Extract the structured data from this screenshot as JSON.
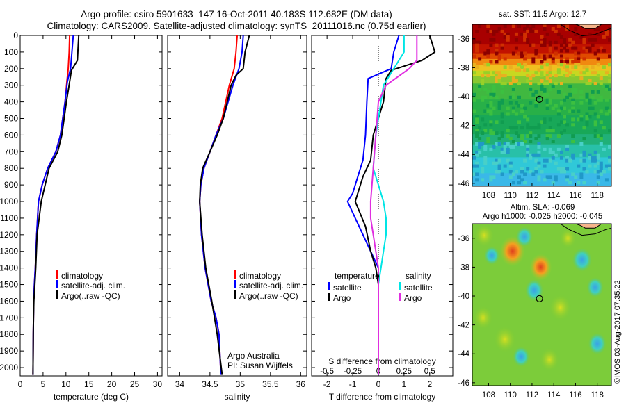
{
  "header": {
    "title_line1": "Argo profile: csiro 5901633_147 16-Oct-2011 40.183S 112.682E (DM data)",
    "title_line2": "Climatology: CARS2009. Satellite-adjusted climatology: synTS_20111016.nc (0.75d earlier)"
  },
  "colors": {
    "climatology": "#ff0000",
    "satellite": "#0000ff",
    "argo": "#000000",
    "salinity_satellite": "#00e5e5",
    "salinity_argo": "#e02ee0"
  },
  "chart_data": [
    {
      "type": "line",
      "panel": "temperature",
      "xlabel": "temperature (deg C)",
      "xlim": [
        0,
        31
      ],
      "ylim": [
        2050,
        0
      ],
      "xticks": [
        0,
        5,
        10,
        15,
        20,
        25,
        30
      ],
      "yticks": [
        0,
        100,
        200,
        300,
        400,
        500,
        600,
        700,
        800,
        900,
        1000,
        1100,
        1200,
        1300,
        1400,
        1500,
        1600,
        1700,
        1800,
        1900,
        2000
      ],
      "legend": [
        "climatology",
        "satellite-adj. clim.",
        "Argo(..raw -QC)"
      ],
      "series": [
        {
          "name": "climatology",
          "color": "#ff0000",
          "x": [
            10.8,
            10.7,
            10.5,
            10.2,
            9.8,
            9.3,
            8.8,
            7.8,
            6.0,
            4.8,
            4.0,
            3.6,
            3.3,
            3.1,
            2.95,
            2.9,
            2.85,
            2.8
          ],
          "y": [
            0,
            100,
            200,
            280,
            400,
            500,
            600,
            700,
            800,
            900,
            1000,
            1200,
            1400,
            1500,
            1600,
            1700,
            1800,
            2040
          ]
        },
        {
          "name": "satellite-adj. clim.",
          "color": "#0000ff",
          "x": [
            11.6,
            11.3,
            11.0,
            10.3,
            9.8,
            9.3,
            8.8,
            7.8,
            6.0,
            4.8,
            4.0,
            3.6,
            3.3,
            3.1,
            2.95,
            2.9,
            2.85,
            2.8
          ],
          "y": [
            0,
            100,
            200,
            280,
            400,
            500,
            600,
            700,
            800,
            900,
            1000,
            1200,
            1400,
            1500,
            1600,
            1700,
            1800,
            2040
          ]
        },
        {
          "name": "Argo(..raw -QC)",
          "color": "#000000",
          "x": [
            12.8,
            12.6,
            12.5,
            11.2,
            10.8,
            10.1,
            9.6,
            9.1,
            8.2,
            6.3,
            4.6,
            3.7,
            3.4,
            3.2,
            3.0,
            2.9,
            2.85,
            2.8
          ],
          "y": [
            0,
            100,
            150,
            210,
            280,
            400,
            500,
            600,
            700,
            800,
            1000,
            1200,
            1400,
            1500,
            1600,
            1700,
            1800,
            2040
          ]
        }
      ]
    },
    {
      "type": "line",
      "panel": "salinity",
      "xlabel": "salinity",
      "xlim": [
        33.8,
        36.1
      ],
      "ylim": [
        2050,
        0
      ],
      "xticks": [
        34,
        34.5,
        35,
        35.5,
        36
      ],
      "legend": [
        "climatology",
        "satellite-adj. clim.",
        "Argo(..raw -QC)"
      ],
      "annotation": [
        "Argo Australia",
        "PI: Susan Wijffels"
      ],
      "series": [
        {
          "name": "climatology",
          "color": "#ff0000",
          "x": [
            34.95,
            34.93,
            34.9,
            34.82,
            34.7,
            34.6,
            34.5,
            34.4,
            34.35,
            34.33,
            34.36,
            34.42,
            34.52,
            34.6,
            34.65,
            34.68
          ],
          "y": [
            0,
            100,
            200,
            300,
            500,
            600,
            700,
            800,
            900,
            1000,
            1200,
            1400,
            1600,
            1700,
            1800,
            2040
          ]
        },
        {
          "name": "satellite-adj. clim.",
          "color": "#0000ff",
          "x": [
            35.05,
            35.03,
            34.98,
            34.88,
            34.72,
            34.6,
            34.5,
            34.4,
            34.35,
            34.33,
            34.36,
            34.42,
            34.52,
            34.6,
            34.65,
            34.68
          ],
          "y": [
            0,
            100,
            200,
            300,
            500,
            600,
            700,
            800,
            900,
            1000,
            1200,
            1400,
            1600,
            1700,
            1800,
            2040
          ]
        },
        {
          "name": "Argo(..raw -QC)",
          "color": "#000000",
          "x": [
            35.15,
            35.08,
            35.05,
            34.93,
            34.85,
            34.72,
            34.62,
            34.5,
            34.38,
            34.34,
            34.33,
            34.37,
            34.43,
            34.53,
            34.62,
            34.7
          ],
          "y": [
            0,
            100,
            200,
            240,
            300,
            500,
            600,
            700,
            800,
            900,
            1000,
            1200,
            1400,
            1600,
            1800,
            2040
          ]
        }
      ]
    },
    {
      "type": "line",
      "panel": "difference",
      "xlabel": "T difference from climatology",
      "top_xlabel": "S difference from climatology",
      "xlim": [
        -2.6,
        2.9
      ],
      "ylim": [
        2050,
        0
      ],
      "xticks": [
        -2,
        -1,
        0,
        1,
        2
      ],
      "top_xticks": [
        -0.5,
        -0.25,
        0,
        0.25,
        0.5
      ],
      "legend_temperature": [
        "temperature",
        "satellite",
        "Argo"
      ],
      "legend_salinity": [
        "salinity",
        "satellite",
        "Argo"
      ],
      "series": [
        {
          "name": "satellite",
          "color": "#0000ff",
          "x": [
            0.8,
            0.6,
            0.5,
            -0.4,
            -0.45,
            -0.5,
            -0.6,
            -0.8,
            -1.0,
            -1.2,
            -0.9,
            -0.6,
            -0.3,
            0,
            0,
            0
          ],
          "y": [
            0,
            100,
            200,
            260,
            400,
            600,
            750,
            850,
            950,
            1000,
            1100,
            1200,
            1300,
            1400,
            1600,
            2040
          ]
        },
        {
          "name": "Argo",
          "color": "#000000",
          "x": [
            2.0,
            2.2,
            1.7,
            0.5,
            0.3,
            0.2,
            -0.2,
            -0.3,
            -0.6,
            -0.9,
            -0.5,
            -0.3,
            -0.1,
            0,
            0,
            0
          ],
          "y": [
            0,
            100,
            150,
            210,
            260,
            400,
            600,
            750,
            850,
            1000,
            1150,
            1300,
            1400,
            1500,
            1700,
            2040
          ]
        },
        {
          "name": "salinity satellite",
          "color": "#00e5e5",
          "x": [
            1.0,
            1.0,
            0.8,
            0.2,
            0.1,
            -0.1,
            -0.2,
            0.0,
            0.2,
            0.3,
            0.3,
            0.2,
            0.1,
            0.0,
            0.0,
            0.0
          ],
          "y": [
            0,
            100,
            150,
            300,
            400,
            600,
            800,
            900,
            1000,
            1100,
            1200,
            1300,
            1400,
            1500,
            1700,
            2040
          ]
        },
        {
          "name": "salinity Argo",
          "color": "#e02ee0",
          "x": [
            1.5,
            1.5,
            1.2,
            0.3,
            0.0,
            -0.1,
            -0.2,
            -0.3,
            -0.3,
            -0.2,
            -0.1,
            0.0,
            0.0
          ],
          "y": [
            0,
            150,
            200,
            300,
            400,
            600,
            800,
            1000,
            1100,
            1200,
            1300,
            1400,
            2040
          ]
        }
      ]
    },
    {
      "type": "heatmap",
      "panel": "sst-map",
      "title": "sat. SST: 11.5 Argo: 12.7",
      "xlim": [
        106.5,
        119.3
      ],
      "ylim": [
        -46.2,
        -35.0
      ],
      "xticks": [
        108,
        110,
        112,
        114,
        116,
        118
      ],
      "yticks": [
        -36,
        -38,
        -40,
        -42,
        -44,
        -46
      ],
      "marker": {
        "lon": 112.682,
        "lat": -40.183
      }
    },
    {
      "type": "heatmap",
      "panel": "sla-map",
      "title": "Altim. SLA: -0.069",
      "subtitle": "Argo h1000: -0.025 h2000: -0.045",
      "xlim": [
        106.5,
        119.3
      ],
      "ylim": [
        -46.2,
        -35.0
      ],
      "xticks": [
        108,
        110,
        112,
        114,
        116,
        118
      ],
      "yticks": [
        -36,
        -38,
        -40,
        -42,
        -44,
        -46
      ],
      "marker": {
        "lon": 112.682,
        "lat": -40.183
      }
    }
  ],
  "credit": "©IMOS 03-Aug-2017 07:35:22"
}
